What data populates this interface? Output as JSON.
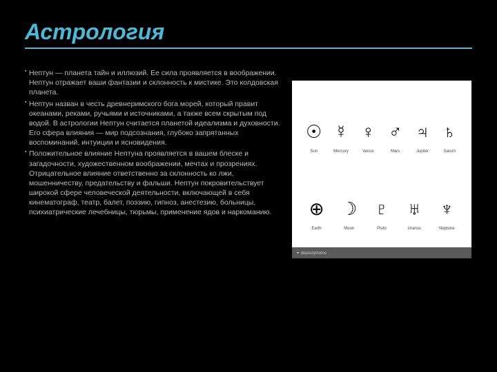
{
  "title": "Астрология",
  "paragraphs": [
    "Нептун — планета тайн и иллюзий. Ее сила проявляется в воображении. Нептун отражает ваши фантазии и склонность к мистике. Это колдовская планета.",
    "Нептун назван в честь древнеримского бога морей, который правит океанами, реками, ручьями и источниками, а также всем скрытым под водой. В астрологии Нептун считается планетой идеализма и духовности. Его сфера влияния — мир подсознания, глубоко запрятанных воспоминаний, интуиции и ясновидения.",
    "Положительное влияние Нептуна проявляется в вашем блеске и загадочности, художественном воображении, мечтах и прозрениях. Отрицательное влияние ответственно за склонность ко лжи, мошенничеству, предательству и фальши. Нептун покровительствует широкой сфере человеческой деятельности, включающей в себя кинематограф, театр, балет, поэзию, гипноз, анестезию, больницы, психиатрические лечебницы, тюрьмы, применение ядов и наркоманию."
  ],
  "symbols_image": {
    "background": "#ffffff",
    "glyph_color": "#000000",
    "label_color": "#444444",
    "row1": [
      {
        "glyph": "☉",
        "label": "Sun"
      },
      {
        "glyph": "☿",
        "label": "Mercury"
      },
      {
        "glyph": "♀",
        "label": "Venus"
      },
      {
        "glyph": "♂",
        "label": "Mars"
      },
      {
        "glyph": "♃",
        "label": "Jupiter"
      },
      {
        "glyph": "♄",
        "label": "Saturn"
      }
    ],
    "row2": [
      {
        "glyph": "⊕",
        "label": "Earth"
      },
      {
        "glyph": "☽",
        "label": "Moon"
      },
      {
        "glyph": "♇",
        "label": "Pluto"
      },
      {
        "glyph": "♅",
        "label": "Uranus"
      },
      {
        "glyph": "♆",
        "label": "Neptune"
      }
    ],
    "footer_left": "depositphotos",
    "footer_right": ""
  },
  "colors": {
    "accent": "#4db8d8",
    "background": "#000000",
    "body_text": "#bdbdbd"
  }
}
